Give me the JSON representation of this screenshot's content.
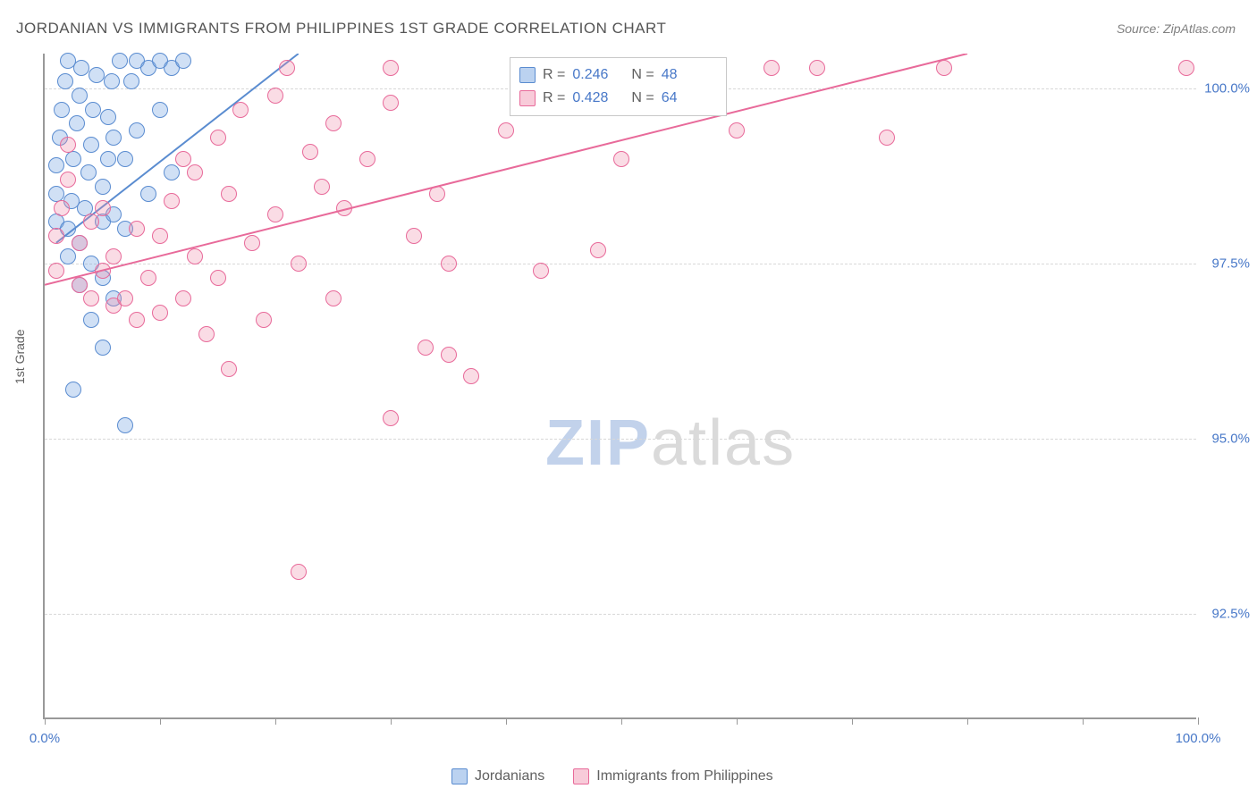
{
  "title": "JORDANIAN VS IMMIGRANTS FROM PHILIPPINES 1ST GRADE CORRELATION CHART",
  "source": "Source: ZipAtlas.com",
  "ylabel": "1st Grade",
  "watermark_a": "ZIP",
  "watermark_b": "atlas",
  "chart": {
    "type": "scatter",
    "background_color": "#ffffff",
    "grid_color": "#d8d8d8",
    "axis_color": "#999999",
    "tick_label_color": "#4878c8",
    "axis_label_color": "#606060",
    "xlim": [
      0,
      100
    ],
    "ylim": [
      91.0,
      100.5
    ],
    "xticks": [
      0,
      10,
      20,
      30,
      40,
      50,
      60,
      70,
      80,
      90,
      100
    ],
    "xtick_labels": {
      "0": "0.0%",
      "100": "100.0%"
    },
    "yticks": [
      92.5,
      95.0,
      97.5,
      100.0
    ],
    "ytick_labels": [
      "92.5%",
      "95.0%",
      "97.5%",
      "100.0%"
    ],
    "marker_size": 18,
    "marker_opacity": 0.35,
    "line_width": 2,
    "series": [
      {
        "name": "Jordanians",
        "color_fill": "rgba(120,165,225,0.35)",
        "color_stroke": "#5a8cd0",
        "r": 0.246,
        "n": 48,
        "trend": {
          "x1": 1,
          "y1": 97.8,
          "x2": 22,
          "y2": 100.5
        },
        "points": [
          [
            1,
            98.1
          ],
          [
            1,
            98.5
          ],
          [
            1,
            98.9
          ],
          [
            1.3,
            99.3
          ],
          [
            1.5,
            99.7
          ],
          [
            1.8,
            100.1
          ],
          [
            2,
            100.4
          ],
          [
            2,
            97.6
          ],
          [
            2,
            98.0
          ],
          [
            2.3,
            98.4
          ],
          [
            2.5,
            99.0
          ],
          [
            2.8,
            99.5
          ],
          [
            3,
            99.9
          ],
          [
            3.2,
            100.3
          ],
          [
            3,
            97.8
          ],
          [
            3.5,
            98.3
          ],
          [
            3.8,
            98.8
          ],
          [
            4,
            99.2
          ],
          [
            4.2,
            99.7
          ],
          [
            4.5,
            100.2
          ],
          [
            3,
            97.2
          ],
          [
            4,
            97.5
          ],
          [
            5,
            98.1
          ],
          [
            5,
            98.6
          ],
          [
            5.5,
            99.0
          ],
          [
            5.5,
            99.6
          ],
          [
            5.8,
            100.1
          ],
          [
            4,
            96.7
          ],
          [
            5,
            97.3
          ],
          [
            6,
            98.2
          ],
          [
            6,
            99.3
          ],
          [
            6.5,
            100.4
          ],
          [
            7,
            98.0
          ],
          [
            7,
            99.0
          ],
          [
            7.5,
            100.1
          ],
          [
            8,
            100.4
          ],
          [
            8,
            99.4
          ],
          [
            9,
            98.5
          ],
          [
            9,
            100.3
          ],
          [
            10,
            99.7
          ],
          [
            10,
            100.4
          ],
          [
            11,
            98.8
          ],
          [
            11,
            100.3
          ],
          [
            12,
            100.4
          ],
          [
            5,
            96.3
          ],
          [
            6,
            97.0
          ],
          [
            7,
            95.2
          ],
          [
            2.5,
            95.7
          ]
        ]
      },
      {
        "name": "Immigrants from Philippines",
        "color_fill": "rgba(240,140,170,0.3)",
        "color_stroke": "#e86a9a",
        "r": 0.428,
        "n": 64,
        "trend": {
          "x1": 0,
          "y1": 97.2,
          "x2": 80,
          "y2": 100.5
        },
        "points": [
          [
            1,
            97.4
          ],
          [
            1,
            97.9
          ],
          [
            1.5,
            98.3
          ],
          [
            2,
            98.7
          ],
          [
            2,
            99.2
          ],
          [
            3,
            97.2
          ],
          [
            3,
            97.8
          ],
          [
            4,
            97.0
          ],
          [
            4,
            98.1
          ],
          [
            5,
            97.4
          ],
          [
            5,
            98.3
          ],
          [
            6,
            96.9
          ],
          [
            6,
            97.6
          ],
          [
            7,
            97.0
          ],
          [
            8,
            96.7
          ],
          [
            8,
            98.0
          ],
          [
            9,
            97.3
          ],
          [
            10,
            96.8
          ],
          [
            10,
            97.9
          ],
          [
            11,
            98.4
          ],
          [
            12,
            97.0
          ],
          [
            12,
            99.0
          ],
          [
            13,
            97.6
          ],
          [
            13,
            98.8
          ],
          [
            14,
            96.5
          ],
          [
            15,
            97.3
          ],
          [
            15,
            99.3
          ],
          [
            16,
            96.0
          ],
          [
            16,
            98.5
          ],
          [
            17,
            99.7
          ],
          [
            18,
            97.8
          ],
          [
            19,
            96.7
          ],
          [
            20,
            98.2
          ],
          [
            20,
            99.9
          ],
          [
            21,
            100.3
          ],
          [
            22,
            97.5
          ],
          [
            23,
            99.1
          ],
          [
            24,
            98.6
          ],
          [
            25,
            97.0
          ],
          [
            25,
            99.5
          ],
          [
            26,
            98.3
          ],
          [
            28,
            99.0
          ],
          [
            30,
            95.3
          ],
          [
            30,
            99.8
          ],
          [
            30,
            100.3
          ],
          [
            32,
            97.9
          ],
          [
            33,
            96.3
          ],
          [
            34,
            98.5
          ],
          [
            35,
            96.2
          ],
          [
            35,
            97.5
          ],
          [
            37,
            95.9
          ],
          [
            40,
            99.4
          ],
          [
            43,
            97.4
          ],
          [
            48,
            97.7
          ],
          [
            50,
            99.0
          ],
          [
            55,
            100.3
          ],
          [
            58,
            100.3
          ],
          [
            60,
            99.4
          ],
          [
            63,
            100.3
          ],
          [
            67,
            100.3
          ],
          [
            73,
            99.3
          ],
          [
            78,
            100.3
          ],
          [
            99,
            100.3
          ],
          [
            22,
            93.1
          ]
        ]
      }
    ]
  },
  "legend_top": {
    "r_label": "R =",
    "n_label": "N ="
  },
  "legend_bottom": [
    {
      "swatch": "blue",
      "label": "Jordanians"
    },
    {
      "swatch": "pink",
      "label": "Immigrants from Philippines"
    }
  ]
}
